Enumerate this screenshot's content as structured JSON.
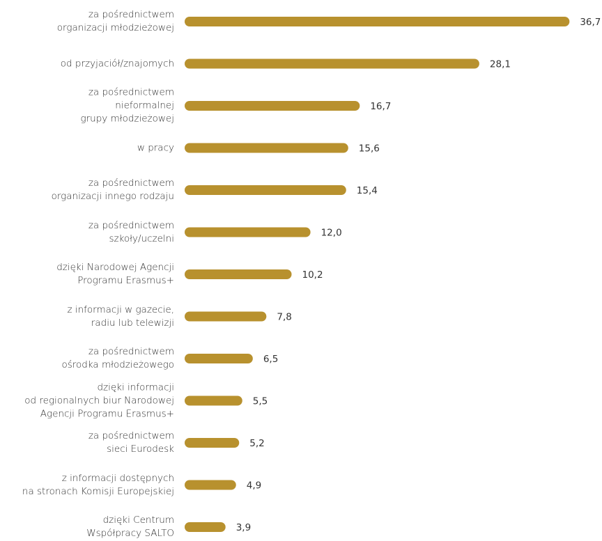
{
  "chart_data": {
    "type": "bar",
    "orientation": "horizontal",
    "color": "#b8912e",
    "categories": [
      "za pośrednictwem\norganizacji młodzieżowej",
      "od przyjaciół/znajomych",
      "za pośrednictwem\nnieformalnej\ngrupy młodzieżowej",
      "w pracy",
      "za pośrednictwem\norganizacji innego rodzaju",
      "za pośrednictwem\nszkoły/uczelni",
      "dzięki Narodowej Agencji\nProgramu Erasmus+",
      "z informacji w gazecie,\nradiu lub telewizji",
      "za pośrednictwem\nośrodka młodzieżowego",
      "dzięki informacji\nod regionalnych biur Narodowej\nAgencji Programu Erasmus+",
      "za pośrednictwem\nsieci Eurodesk",
      "z informacji dostępnych\nna stronach Komisji Europejskiej",
      "dzięki Centrum\nWspółpracy SALTO"
    ],
    "values": [
      36.7,
      28.1,
      16.7,
      15.6,
      15.4,
      12.0,
      10.2,
      7.8,
      6.5,
      5.5,
      5.2,
      4.9,
      3.9
    ],
    "value_labels": [
      "36,7",
      "28,1",
      "16,7",
      "15,6",
      "15,4",
      "12,0",
      "10,2",
      "7,8",
      "6,5",
      "5,5",
      "5,2",
      "4,9",
      "3,9"
    ]
  }
}
